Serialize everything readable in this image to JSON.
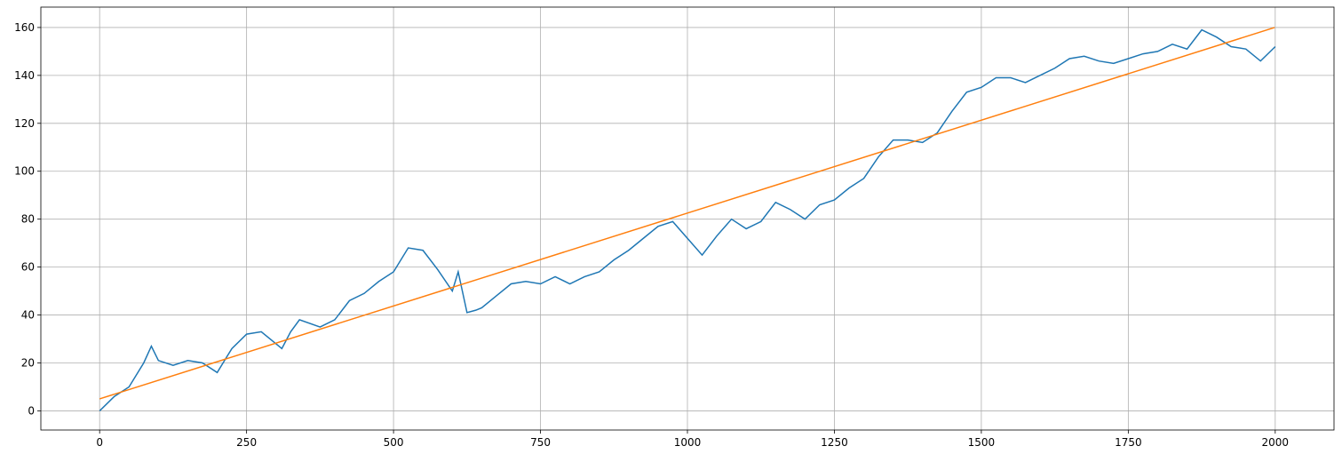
{
  "chart_data": {
    "type": "line",
    "xlim": [
      -100,
      2100
    ],
    "ylim": [
      -8,
      168.5
    ],
    "xticks": [
      0,
      250,
      500,
      750,
      1000,
      1250,
      1500,
      1750,
      2000
    ],
    "yticks": [
      0,
      20,
      40,
      60,
      80,
      100,
      120,
      140,
      160
    ],
    "grid": true,
    "series": [
      {
        "color": "#1f77b4",
        "x": [
          0,
          25,
          50,
          75,
          88,
          100,
          125,
          150,
          175,
          200,
          225,
          250,
          275,
          300,
          310,
          325,
          340,
          375,
          400,
          425,
          450,
          475,
          500,
          525,
          550,
          575,
          600,
          610,
          625,
          640,
          650,
          675,
          700,
          725,
          750,
          775,
          800,
          825,
          850,
          875,
          900,
          925,
          950,
          975,
          1000,
          1025,
          1050,
          1075,
          1100,
          1125,
          1150,
          1175,
          1200,
          1225,
          1250,
          1275,
          1300,
          1325,
          1350,
          1375,
          1400,
          1425,
          1450,
          1475,
          1500,
          1525,
          1550,
          1575,
          1600,
          1625,
          1650,
          1675,
          1700,
          1725,
          1750,
          1775,
          1800,
          1825,
          1850,
          1875,
          1900,
          1925,
          1950,
          1975,
          2000
        ],
        "values": [
          0,
          6,
          10,
          20,
          27,
          21,
          19,
          21,
          20,
          16,
          26,
          32,
          33,
          28,
          26,
          33,
          38,
          35,
          38,
          46,
          49,
          54,
          58,
          68,
          67,
          59,
          50,
          58,
          41,
          42,
          43,
          48,
          53,
          54,
          53,
          56,
          53,
          56,
          58,
          63,
          67,
          72,
          77,
          79,
          72,
          65,
          73,
          80,
          76,
          79,
          87,
          84,
          80,
          86,
          88,
          93,
          97,
          106,
          113,
          113,
          112,
          116,
          125,
          133,
          135,
          139,
          139,
          137,
          140,
          143,
          147,
          148,
          146,
          145,
          147,
          149,
          150,
          153,
          151,
          159,
          156,
          152,
          151,
          146,
          152
        ]
      },
      {
        "color": "#ff7f0e",
        "x": [
          0,
          1999
        ],
        "values": [
          5,
          160
        ]
      }
    ]
  }
}
